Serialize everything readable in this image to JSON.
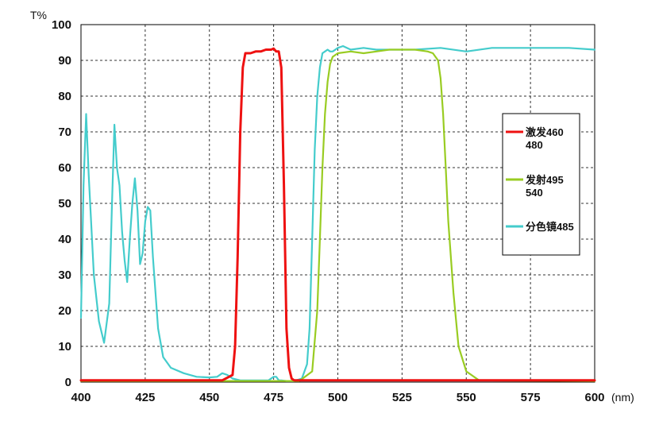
{
  "chart_data": {
    "type": "line",
    "title": "",
    "y_unit_label": "T%",
    "x_unit_label": "(nm)",
    "xlim": [
      400,
      600
    ],
    "ylim": [
      0,
      100
    ],
    "x_ticks": [
      400,
      425,
      450,
      475,
      500,
      525,
      550,
      575,
      600
    ],
    "x_tick_labels": [
      "400",
      "425",
      "450",
      "475",
      "500",
      "525",
      "550",
      "575",
      "600"
    ],
    "y_ticks": [
      0,
      10,
      20,
      30,
      40,
      50,
      60,
      70,
      80,
      90,
      100
    ],
    "y_tick_labels": [
      "0",
      "10",
      "20",
      "30",
      "40",
      "50",
      "60",
      "70",
      "80",
      "90",
      "100"
    ],
    "grid": "dashed",
    "legend_position": "right",
    "series": [
      {
        "name": "激发460 480",
        "legend_lines": [
          "激发460",
          "480"
        ],
        "color": "#ee1111",
        "x": [
          400,
          455,
          459,
          460,
          461,
          462,
          463,
          464,
          466,
          468,
          470,
          472,
          474,
          475,
          476,
          477,
          478,
          479,
          480,
          481,
          482,
          483,
          485,
          600
        ],
        "y": [
          0.5,
          0.5,
          2,
          10,
          35,
          70,
          88,
          92,
          92,
          92.5,
          92.5,
          93,
          93,
          93.3,
          92.5,
          92.5,
          88,
          55,
          15,
          4,
          1,
          0.5,
          0.5,
          0.5
        ]
      },
      {
        "name": "发射495 540",
        "legend_lines": [
          "发射495",
          "540"
        ],
        "color": "#99cc22",
        "x": [
          400,
          485,
          490,
          492,
          493,
          494,
          495,
          496,
          497,
          498,
          500,
          505,
          510,
          515,
          520,
          525,
          530,
          535,
          537,
          539,
          540,
          541,
          542,
          543,
          545,
          547,
          550,
          555,
          600
        ],
        "y": [
          0.3,
          0.3,
          3,
          20,
          40,
          60,
          75,
          84,
          89,
          91,
          92,
          92.5,
          92,
          92.5,
          93,
          93,
          93,
          92.5,
          92,
          90,
          85,
          75,
          60,
          45,
          25,
          10,
          3,
          0.5,
          0.3
        ]
      },
      {
        "name": "分色镜485",
        "legend_lines": [
          "分色镜485"
        ],
        "color": "#44cccc",
        "x": [
          400,
          401,
          402,
          403,
          405,
          407,
          409,
          411,
          412,
          413,
          414,
          415,
          416,
          417,
          418,
          419,
          420,
          421,
          422,
          423,
          424,
          425,
          426,
          427,
          428,
          430,
          432,
          435,
          440,
          445,
          450,
          453,
          455,
          457,
          459,
          462,
          465,
          470,
          473,
          475,
          476,
          477,
          478,
          480,
          483,
          486,
          488,
          489,
          490,
          491,
          492,
          493,
          494,
          495,
          496,
          497,
          498,
          500,
          502,
          505,
          510,
          515,
          520,
          525,
          530,
          540,
          550,
          560,
          570,
          580,
          590,
          600
        ],
        "y": [
          18,
          55,
          75,
          58,
          30,
          17,
          11,
          22,
          48,
          72,
          60,
          55,
          42,
          34,
          28,
          40,
          50,
          57,
          48,
          33,
          36,
          45,
          49,
          48,
          35,
          15,
          7,
          4,
          2.5,
          1.5,
          1.3,
          1.5,
          2.5,
          2,
          1,
          0.5,
          0.5,
          0.5,
          0.5,
          1.5,
          1.5,
          0.5,
          0.5,
          0.3,
          0.3,
          1,
          5,
          15,
          40,
          65,
          80,
          88,
          92,
          92.5,
          93,
          92.5,
          92.5,
          93.5,
          94,
          93,
          93.5,
          93,
          93,
          93,
          93,
          93.5,
          92.5,
          93.5,
          93.5,
          93.5,
          93.5,
          93
        ]
      }
    ]
  }
}
